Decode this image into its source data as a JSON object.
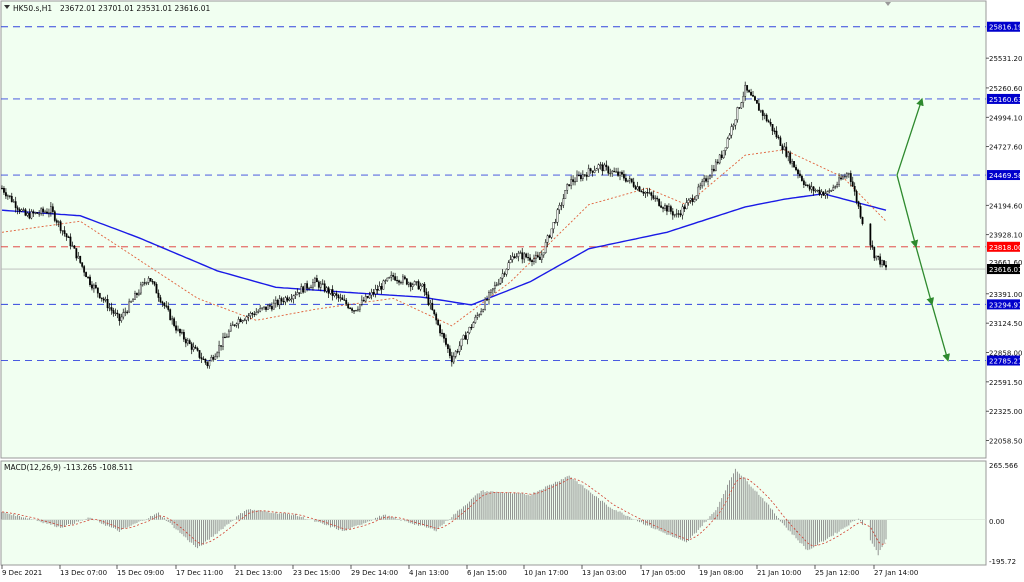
{
  "header": {
    "symbol": "HK50.s,H1",
    "ohlc": "23672.01 23701.01 23531.01 23616.01"
  },
  "macd": {
    "label": "MACD(12,26,9) -113.265 -108.511",
    "axis_labels": [
      "265.566",
      "0.00",
      "-195.72"
    ]
  },
  "price_axis": {
    "labels": [
      "25531.20",
      "25260.60",
      "24994.10",
      "24727.60",
      "24194.60",
      "23928.10",
      "23391.00",
      "23124.50",
      "22858.00",
      "22591.50",
      "22325.00",
      "22058.50"
    ],
    "label_partial": "23661.60"
  },
  "levels": [
    {
      "label": "25816.19",
      "value": 25816.19,
      "kind": "resistance"
    },
    {
      "label": "25160.63",
      "value": 25160.63,
      "kind": "resistance"
    },
    {
      "label": "24469.58",
      "value": 24469.58,
      "kind": "resistance"
    },
    {
      "label": "23818.00",
      "value": 23818.0,
      "kind": "pivot"
    },
    {
      "label": "23616.01",
      "value": 23616.01,
      "kind": "current"
    },
    {
      "label": "23294.97",
      "value": 23294.97,
      "kind": "support"
    },
    {
      "label": "22785.21",
      "value": 22785.21,
      "kind": "support"
    }
  ],
  "time_axis": {
    "labels": [
      "9 Dec 2021",
      "13 Dec 07:00",
      "15 Dec 09:00",
      "17 Dec 11:00",
      "21 Dec 13:00",
      "23 Dec 15:00",
      "29 Dec 14:00",
      "4 Jan 13:00",
      "6 Jan 15:00",
      "10 Jan 17:00",
      "13 Jan 03:00",
      "17 Jan 05:00",
      "19 Jan 08:00",
      "21 Jan 10:00",
      "25 Jan 12:00",
      "27 Jan 14:00"
    ]
  },
  "chart_data": {
    "type": "candlestick",
    "symbol": "HK50.s",
    "timeframe": "H1",
    "price_anchors": [
      [
        0,
        24350
      ],
      [
        12,
        24100
      ],
      [
        25,
        24150
      ],
      [
        35,
        23850
      ],
      [
        45,
        23500
      ],
      [
        60,
        23150
      ],
      [
        75,
        23550
      ],
      [
        90,
        23050
      ],
      [
        105,
        22750
      ],
      [
        120,
        23150
      ],
      [
        140,
        23300
      ],
      [
        160,
        23500
      ],
      [
        180,
        23250
      ],
      [
        200,
        23550
      ],
      [
        215,
        23450
      ],
      [
        230,
        22800
      ],
      [
        245,
        23250
      ],
      [
        262,
        23750
      ],
      [
        275,
        23700
      ],
      [
        290,
        24400
      ],
      [
        305,
        24550
      ],
      [
        318,
        24450
      ],
      [
        330,
        24300
      ],
      [
        345,
        24100
      ],
      [
        355,
        24300
      ],
      [
        368,
        24650
      ],
      [
        380,
        25250
      ],
      [
        392,
        24950
      ],
      [
        400,
        24700
      ],
      [
        412,
        24350
      ],
      [
        422,
        24300
      ],
      [
        433,
        24500
      ],
      [
        440,
        24050
      ],
      [
        446,
        23750
      ],
      [
        452,
        23620
      ]
    ],
    "ma_slow_anchors": [
      [
        0,
        24150
      ],
      [
        40,
        24100
      ],
      [
        70,
        23900
      ],
      [
        110,
        23600
      ],
      [
        140,
        23450
      ],
      [
        180,
        23400
      ],
      [
        215,
        23360
      ],
      [
        240,
        23290
      ],
      [
        270,
        23500
      ],
      [
        300,
        23800
      ],
      [
        340,
        23950
      ],
      [
        380,
        24180
      ],
      [
        400,
        24250
      ],
      [
        420,
        24300
      ],
      [
        452,
        24150
      ]
    ],
    "ma_fast_anchors": [
      [
        0,
        23950
      ],
      [
        40,
        24050
      ],
      [
        70,
        23700
      ],
      [
        100,
        23350
      ],
      [
        130,
        23150
      ],
      [
        160,
        23250
      ],
      [
        200,
        23350
      ],
      [
        230,
        23100
      ],
      [
        260,
        23500
      ],
      [
        300,
        24200
      ],
      [
        330,
        24350
      ],
      [
        350,
        24200
      ],
      [
        380,
        24650
      ],
      [
        400,
        24700
      ],
      [
        430,
        24450
      ],
      [
        452,
        24050
      ]
    ],
    "macd_anchors": [
      [
        0,
        40
      ],
      [
        15,
        5
      ],
      [
        30,
        -40
      ],
      [
        45,
        10
      ],
      [
        60,
        -60
      ],
      [
        80,
        35
      ],
      [
        100,
        -150
      ],
      [
        125,
        55
      ],
      [
        150,
        25
      ],
      [
        175,
        -60
      ],
      [
        195,
        25
      ],
      [
        222,
        -55
      ],
      [
        245,
        150
      ],
      [
        270,
        130
      ],
      [
        290,
        230
      ],
      [
        310,
        70
      ],
      [
        330,
        -30
      ],
      [
        350,
        -120
      ],
      [
        365,
        50
      ],
      [
        375,
        265
      ],
      [
        390,
        100
      ],
      [
        400,
        -30
      ],
      [
        412,
        -160
      ],
      [
        428,
        -60
      ],
      [
        438,
        10
      ],
      [
        448,
        -180
      ],
      [
        452,
        -100
      ]
    ],
    "forecast_targets": [
      25160.63,
      23818.0,
      23294.97,
      22785.21
    ],
    "ylim": [
      21900,
      26050
    ],
    "macd_ylim": [
      -230,
      300
    ]
  }
}
